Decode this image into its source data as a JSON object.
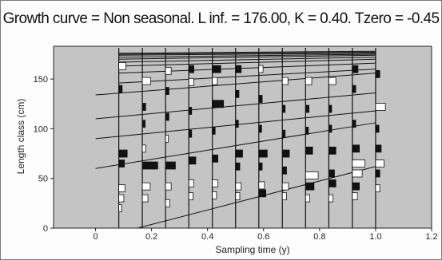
{
  "chart_data": {
    "type": "length-frequency",
    "title": "Growth curve = Non seasonal.  L inf.   = 176.00,   K = 0.40.  Tzero = -0.45",
    "xlabel": "Sampling time (y)",
    "ylabel": "Length class (cm)",
    "xlim": [
      -0.15,
      1.2
    ],
    "ylim": [
      0,
      183
    ],
    "xticks": [
      0,
      0.2,
      0.4,
      0.6,
      0.8,
      1.0,
      1.2
    ],
    "yticks": [
      0,
      50,
      100,
      150
    ],
    "xtick_labels": [
      "0",
      "0.2",
      "0.4",
      "0.6",
      "0.8",
      "1.0",
      "1.2"
    ],
    "ytick_labels": [
      "0",
      "50",
      "100",
      "150"
    ],
    "plot_background": "#c4c4c4",
    "growth_curve": {
      "Linf": 176.0,
      "K": 0.4,
      "t0": -0.45,
      "seasonal": false
    },
    "sample_times": [
      0.083,
      0.167,
      0.25,
      0.333,
      0.417,
      0.5,
      0.583,
      0.667,
      0.75,
      0.833,
      0.917,
      1.0
    ],
    "growth_lines": [
      {
        "x": [
          0.083,
          1.0
        ],
        "y": [
          176,
          178
        ]
      },
      {
        "x": [
          0.083,
          1.0
        ],
        "y": [
          175,
          177
        ]
      },
      {
        "x": [
          0.083,
          1.0
        ],
        "y": [
          174,
          176
        ]
      },
      {
        "x": [
          0.083,
          1.0
        ],
        "y": [
          172,
          175
        ]
      },
      {
        "x": [
          0.083,
          1.0
        ],
        "y": [
          170,
          174
        ]
      },
      {
        "x": [
          0.083,
          1.0
        ],
        "y": [
          167,
          172
        ]
      },
      {
        "x": [
          0.083,
          1.0
        ],
        "y": [
          163,
          170
        ]
      },
      {
        "x": [
          0.083,
          1.0
        ],
        "y": [
          156,
          166
        ]
      },
      {
        "x": [
          0.083,
          1.0
        ],
        "y": [
          146,
          160
        ]
      },
      {
        "x": [
          0.0,
          1.0
        ],
        "y": [
          134,
          156
        ]
      },
      {
        "x": [
          0.0,
          1.0
        ],
        "y": [
          110,
          136
        ]
      },
      {
        "x": [
          0.0,
          1.0
        ],
        "y": [
          90,
          118
        ]
      },
      {
        "x": [
          0.0,
          1.0
        ],
        "y": [
          60,
          106
        ]
      },
      {
        "x": [
          0.15,
          1.0
        ],
        "y": [
          0,
          62
        ]
      }
    ],
    "bars": [
      {
        "t": 0.083,
        "y": 163,
        "w": 0.025,
        "pos": true
      },
      {
        "t": 0.083,
        "y": 140,
        "w": 0.012,
        "pos": false
      },
      {
        "t": 0.083,
        "y": 75,
        "w": 0.03,
        "pos": false
      },
      {
        "t": 0.083,
        "y": 65,
        "w": 0.02,
        "pos": false
      },
      {
        "t": 0.083,
        "y": 40,
        "w": 0.022,
        "pos": true
      },
      {
        "t": 0.083,
        "y": 30,
        "w": 0.018,
        "pos": true
      },
      {
        "t": 0.083,
        "y": 20,
        "w": 0.01,
        "pos": true
      },
      {
        "t": 0.167,
        "y": 148,
        "w": 0.03,
        "pos": true
      },
      {
        "t": 0.167,
        "y": 122,
        "w": 0.012,
        "pos": false
      },
      {
        "t": 0.167,
        "y": 105,
        "w": 0.01,
        "pos": false
      },
      {
        "t": 0.167,
        "y": 80,
        "w": 0.012,
        "pos": true
      },
      {
        "t": 0.167,
        "y": 63,
        "w": 0.055,
        "pos": false
      },
      {
        "t": 0.167,
        "y": 42,
        "w": 0.028,
        "pos": true
      },
      {
        "t": 0.167,
        "y": 30,
        "w": 0.02,
        "pos": true
      },
      {
        "t": 0.25,
        "y": 158,
        "w": 0.02,
        "pos": true
      },
      {
        "t": 0.25,
        "y": 138,
        "w": 0.012,
        "pos": false
      },
      {
        "t": 0.25,
        "y": 112,
        "w": 0.012,
        "pos": false
      },
      {
        "t": 0.25,
        "y": 90,
        "w": 0.01,
        "pos": true
      },
      {
        "t": 0.25,
        "y": 63,
        "w": 0.035,
        "pos": false
      },
      {
        "t": 0.25,
        "y": 42,
        "w": 0.02,
        "pos": true
      },
      {
        "t": 0.25,
        "y": 25,
        "w": 0.015,
        "pos": true
      },
      {
        "t": 0.333,
        "y": 160,
        "w": 0.018,
        "pos": false
      },
      {
        "t": 0.333,
        "y": 147,
        "w": 0.018,
        "pos": true
      },
      {
        "t": 0.333,
        "y": 118,
        "w": 0.01,
        "pos": false
      },
      {
        "t": 0.333,
        "y": 95,
        "w": 0.01,
        "pos": false
      },
      {
        "t": 0.333,
        "y": 68,
        "w": 0.025,
        "pos": false
      },
      {
        "t": 0.333,
        "y": 45,
        "w": 0.018,
        "pos": true
      },
      {
        "t": 0.333,
        "y": 32,
        "w": 0.015,
        "pos": true
      },
      {
        "t": 0.417,
        "y": 160,
        "w": 0.03,
        "pos": false
      },
      {
        "t": 0.417,
        "y": 148,
        "w": 0.018,
        "pos": true
      },
      {
        "t": 0.417,
        "y": 125,
        "w": 0.04,
        "pos": false
      },
      {
        "t": 0.417,
        "y": 98,
        "w": 0.01,
        "pos": false
      },
      {
        "t": 0.417,
        "y": 70,
        "w": 0.02,
        "pos": false
      },
      {
        "t": 0.417,
        "y": 45,
        "w": 0.02,
        "pos": true
      },
      {
        "t": 0.417,
        "y": 33,
        "w": 0.015,
        "pos": true
      },
      {
        "t": 0.5,
        "y": 160,
        "w": 0.02,
        "pos": false
      },
      {
        "t": 0.5,
        "y": 135,
        "w": 0.012,
        "pos": false
      },
      {
        "t": 0.5,
        "y": 105,
        "w": 0.01,
        "pos": false
      },
      {
        "t": 0.5,
        "y": 75,
        "w": 0.025,
        "pos": false
      },
      {
        "t": 0.5,
        "y": 62,
        "w": 0.015,
        "pos": false
      },
      {
        "t": 0.5,
        "y": 42,
        "w": 0.02,
        "pos": true
      },
      {
        "t": 0.5,
        "y": 32,
        "w": 0.015,
        "pos": true
      },
      {
        "t": 0.583,
        "y": 160,
        "w": 0.015,
        "pos": true
      },
      {
        "t": 0.583,
        "y": 130,
        "w": 0.012,
        "pos": false
      },
      {
        "t": 0.583,
        "y": 100,
        "w": 0.01,
        "pos": false
      },
      {
        "t": 0.583,
        "y": 75,
        "w": 0.03,
        "pos": false
      },
      {
        "t": 0.583,
        "y": 62,
        "w": 0.012,
        "pos": false
      },
      {
        "t": 0.583,
        "y": 43,
        "w": 0.02,
        "pos": true
      },
      {
        "t": 0.583,
        "y": 35,
        "w": 0.025,
        "pos": false
      },
      {
        "t": 0.667,
        "y": 148,
        "w": 0.02,
        "pos": true
      },
      {
        "t": 0.667,
        "y": 120,
        "w": 0.01,
        "pos": false
      },
      {
        "t": 0.667,
        "y": 95,
        "w": 0.01,
        "pos": false
      },
      {
        "t": 0.667,
        "y": 75,
        "w": 0.025,
        "pos": false
      },
      {
        "t": 0.667,
        "y": 58,
        "w": 0.015,
        "pos": false
      },
      {
        "t": 0.667,
        "y": 42,
        "w": 0.022,
        "pos": true
      },
      {
        "t": 0.667,
        "y": 32,
        "w": 0.015,
        "pos": true
      },
      {
        "t": 0.75,
        "y": 148,
        "w": 0.022,
        "pos": true
      },
      {
        "t": 0.75,
        "y": 120,
        "w": 0.012,
        "pos": false
      },
      {
        "t": 0.75,
        "y": 98,
        "w": 0.01,
        "pos": false
      },
      {
        "t": 0.75,
        "y": 78,
        "w": 0.025,
        "pos": false
      },
      {
        "t": 0.75,
        "y": 53,
        "w": 0.045,
        "pos": true
      },
      {
        "t": 0.75,
        "y": 42,
        "w": 0.03,
        "pos": false
      },
      {
        "t": 0.75,
        "y": 30,
        "w": 0.015,
        "pos": true
      },
      {
        "t": 0.833,
        "y": 148,
        "w": 0.025,
        "pos": true
      },
      {
        "t": 0.833,
        "y": 120,
        "w": 0.01,
        "pos": false
      },
      {
        "t": 0.833,
        "y": 100,
        "w": 0.01,
        "pos": false
      },
      {
        "t": 0.833,
        "y": 78,
        "w": 0.025,
        "pos": false
      },
      {
        "t": 0.833,
        "y": 55,
        "w": 0.02,
        "pos": false
      },
      {
        "t": 0.833,
        "y": 45,
        "w": 0.025,
        "pos": false
      },
      {
        "t": 0.833,
        "y": 30,
        "w": 0.015,
        "pos": true
      },
      {
        "t": 0.917,
        "y": 160,
        "w": 0.02,
        "pos": false
      },
      {
        "t": 0.917,
        "y": 140,
        "w": 0.012,
        "pos": false
      },
      {
        "t": 0.917,
        "y": 105,
        "w": 0.012,
        "pos": false
      },
      {
        "t": 0.917,
        "y": 80,
        "w": 0.025,
        "pos": false
      },
      {
        "t": 0.917,
        "y": 65,
        "w": 0.045,
        "pos": true
      },
      {
        "t": 0.917,
        "y": 55,
        "w": 0.035,
        "pos": true
      },
      {
        "t": 0.917,
        "y": 42,
        "w": 0.025,
        "pos": false
      },
      {
        "t": 0.917,
        "y": 32,
        "w": 0.018,
        "pos": true
      },
      {
        "t": 1.0,
        "y": 155,
        "w": 0.015,
        "pos": false
      },
      {
        "t": 1.0,
        "y": 122,
        "w": 0.035,
        "pos": true
      },
      {
        "t": 1.0,
        "y": 100,
        "w": 0.012,
        "pos": false
      },
      {
        "t": 1.0,
        "y": 80,
        "w": 0.02,
        "pos": false
      },
      {
        "t": 1.0,
        "y": 65,
        "w": 0.03,
        "pos": true
      },
      {
        "t": 1.0,
        "y": 55,
        "w": 0.015,
        "pos": false
      },
      {
        "t": 1.0,
        "y": 40,
        "w": 0.015,
        "pos": true
      }
    ]
  }
}
